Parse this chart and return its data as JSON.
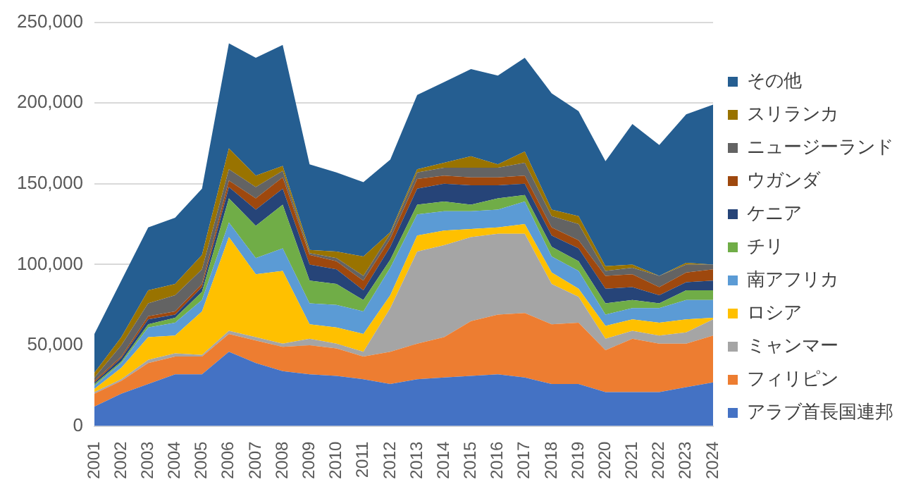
{
  "chart_data": {
    "type": "area",
    "stacked": true,
    "categories": [
      "2001",
      "2002",
      "2003",
      "2004",
      "2005",
      "2006",
      "2007",
      "2008",
      "2009",
      "2010",
      "2011",
      "2012",
      "2013",
      "2014",
      "2015",
      "2016",
      "2017",
      "2018",
      "2019",
      "2020",
      "2021",
      "2022",
      "2023",
      "2024"
    ],
    "series": [
      {
        "name": "アラブ首長国連邦",
        "color": "#4472c4",
        "values": [
          12000,
          20000,
          26000,
          32000,
          32000,
          46000,
          39000,
          34000,
          32000,
          31000,
          29000,
          26000,
          29000,
          30000,
          31000,
          32000,
          30000,
          26000,
          26000,
          21000,
          21000,
          21000,
          24000,
          27000
        ]
      },
      {
        "name": "フィリピン",
        "color": "#ed7d31",
        "values": [
          8000,
          8000,
          13000,
          11000,
          11000,
          11000,
          14000,
          15000,
          18000,
          17000,
          14000,
          20000,
          22000,
          25000,
          34000,
          37000,
          40000,
          37000,
          38000,
          26000,
          33000,
          30000,
          27000,
          29000
        ]
      },
      {
        "name": "ミャンマー",
        "color": "#a5a5a5",
        "values": [
          1000,
          1000,
          2000,
          2000,
          1000,
          2000,
          2000,
          2000,
          4000,
          3000,
          3000,
          27000,
          57000,
          57000,
          52000,
          50000,
          49000,
          25000,
          16000,
          7000,
          5000,
          5000,
          7000,
          10000
        ]
      },
      {
        "name": "ロシア",
        "color": "#ffc000",
        "values": [
          2000,
          7000,
          14000,
          11000,
          27000,
          58000,
          39000,
          45000,
          9000,
          10000,
          11000,
          8000,
          10000,
          9000,
          5000,
          4000,
          6000,
          7000,
          5000,
          8000,
          7000,
          8000,
          8000,
          1000
        ]
      },
      {
        "name": "南アフリカ",
        "color": "#5b9bd5",
        "values": [
          2000,
          3000,
          6000,
          8000,
          7000,
          9000,
          10000,
          14000,
          13000,
          14000,
          14000,
          17000,
          13000,
          12000,
          11000,
          11000,
          14000,
          10000,
          11000,
          7000,
          7000,
          9000,
          12000,
          11000
        ]
      },
      {
        "name": "チリ",
        "color": "#70ad47",
        "values": [
          1000,
          1000,
          2000,
          3000,
          5000,
          15000,
          20000,
          27000,
          14000,
          13000,
          7000,
          5000,
          6000,
          6000,
          4000,
          7000,
          4000,
          6000,
          6000,
          7000,
          5000,
          3000,
          6000,
          6000
        ]
      },
      {
        "name": "ケニア",
        "color": "#264478",
        "values": [
          1000,
          2000,
          3000,
          2000,
          3000,
          7000,
          10000,
          10000,
          10000,
          9000,
          6000,
          8000,
          10000,
          11000,
          12000,
          8000,
          7000,
          7000,
          8000,
          9000,
          8000,
          5000,
          5000,
          6000
        ]
      },
      {
        "name": "ウガンダ",
        "color": "#9e480e",
        "values": [
          1000,
          1000,
          2000,
          2000,
          2000,
          4000,
          7000,
          7000,
          6000,
          5000,
          6000,
          5000,
          6000,
          5000,
          5000,
          5000,
          5000,
          5000,
          5000,
          8000,
          8000,
          5000,
          6000,
          7000
        ]
      },
      {
        "name": "ニュージーランド",
        "color": "#636363",
        "values": [
          2000,
          7000,
          8000,
          10000,
          9000,
          7000,
          7000,
          4000,
          1000,
          2000,
          3000,
          3000,
          4000,
          5000,
          6000,
          6000,
          8000,
          7000,
          10000,
          3000,
          4000,
          7000,
          5000,
          3000
        ]
      },
      {
        "name": "スリランカ",
        "color": "#997300",
        "values": [
          3000,
          5000,
          8000,
          7000,
          9000,
          13000,
          7000,
          3000,
          2000,
          4000,
          12000,
          1000,
          2000,
          3000,
          7000,
          2000,
          7000,
          4000,
          5000,
          3000,
          2000,
          0,
          1000,
          0
        ]
      },
      {
        "name": "その他",
        "color": "#255e91",
        "values": [
          24000,
          35000,
          39000,
          41000,
          41000,
          65000,
          73000,
          75000,
          53000,
          49000,
          46000,
          45000,
          46000,
          50000,
          54000,
          55000,
          58000,
          72000,
          65000,
          65000,
          87000,
          81000,
          92000,
          99000
        ]
      }
    ],
    "ylim": [
      0,
      250000
    ],
    "yticks": [
      0,
      {
        "value": 50000,
        "label": "50,000"
      },
      {
        "value": 100000,
        "label": "100,000"
      },
      {
        "value": 150000,
        "label": "150,000"
      },
      {
        "value": 200000,
        "label": "200,000"
      },
      {
        "value": 250000,
        "label": "250,000"
      }
    ],
    "grid": "y",
    "legend": "right",
    "marker": "none"
  }
}
